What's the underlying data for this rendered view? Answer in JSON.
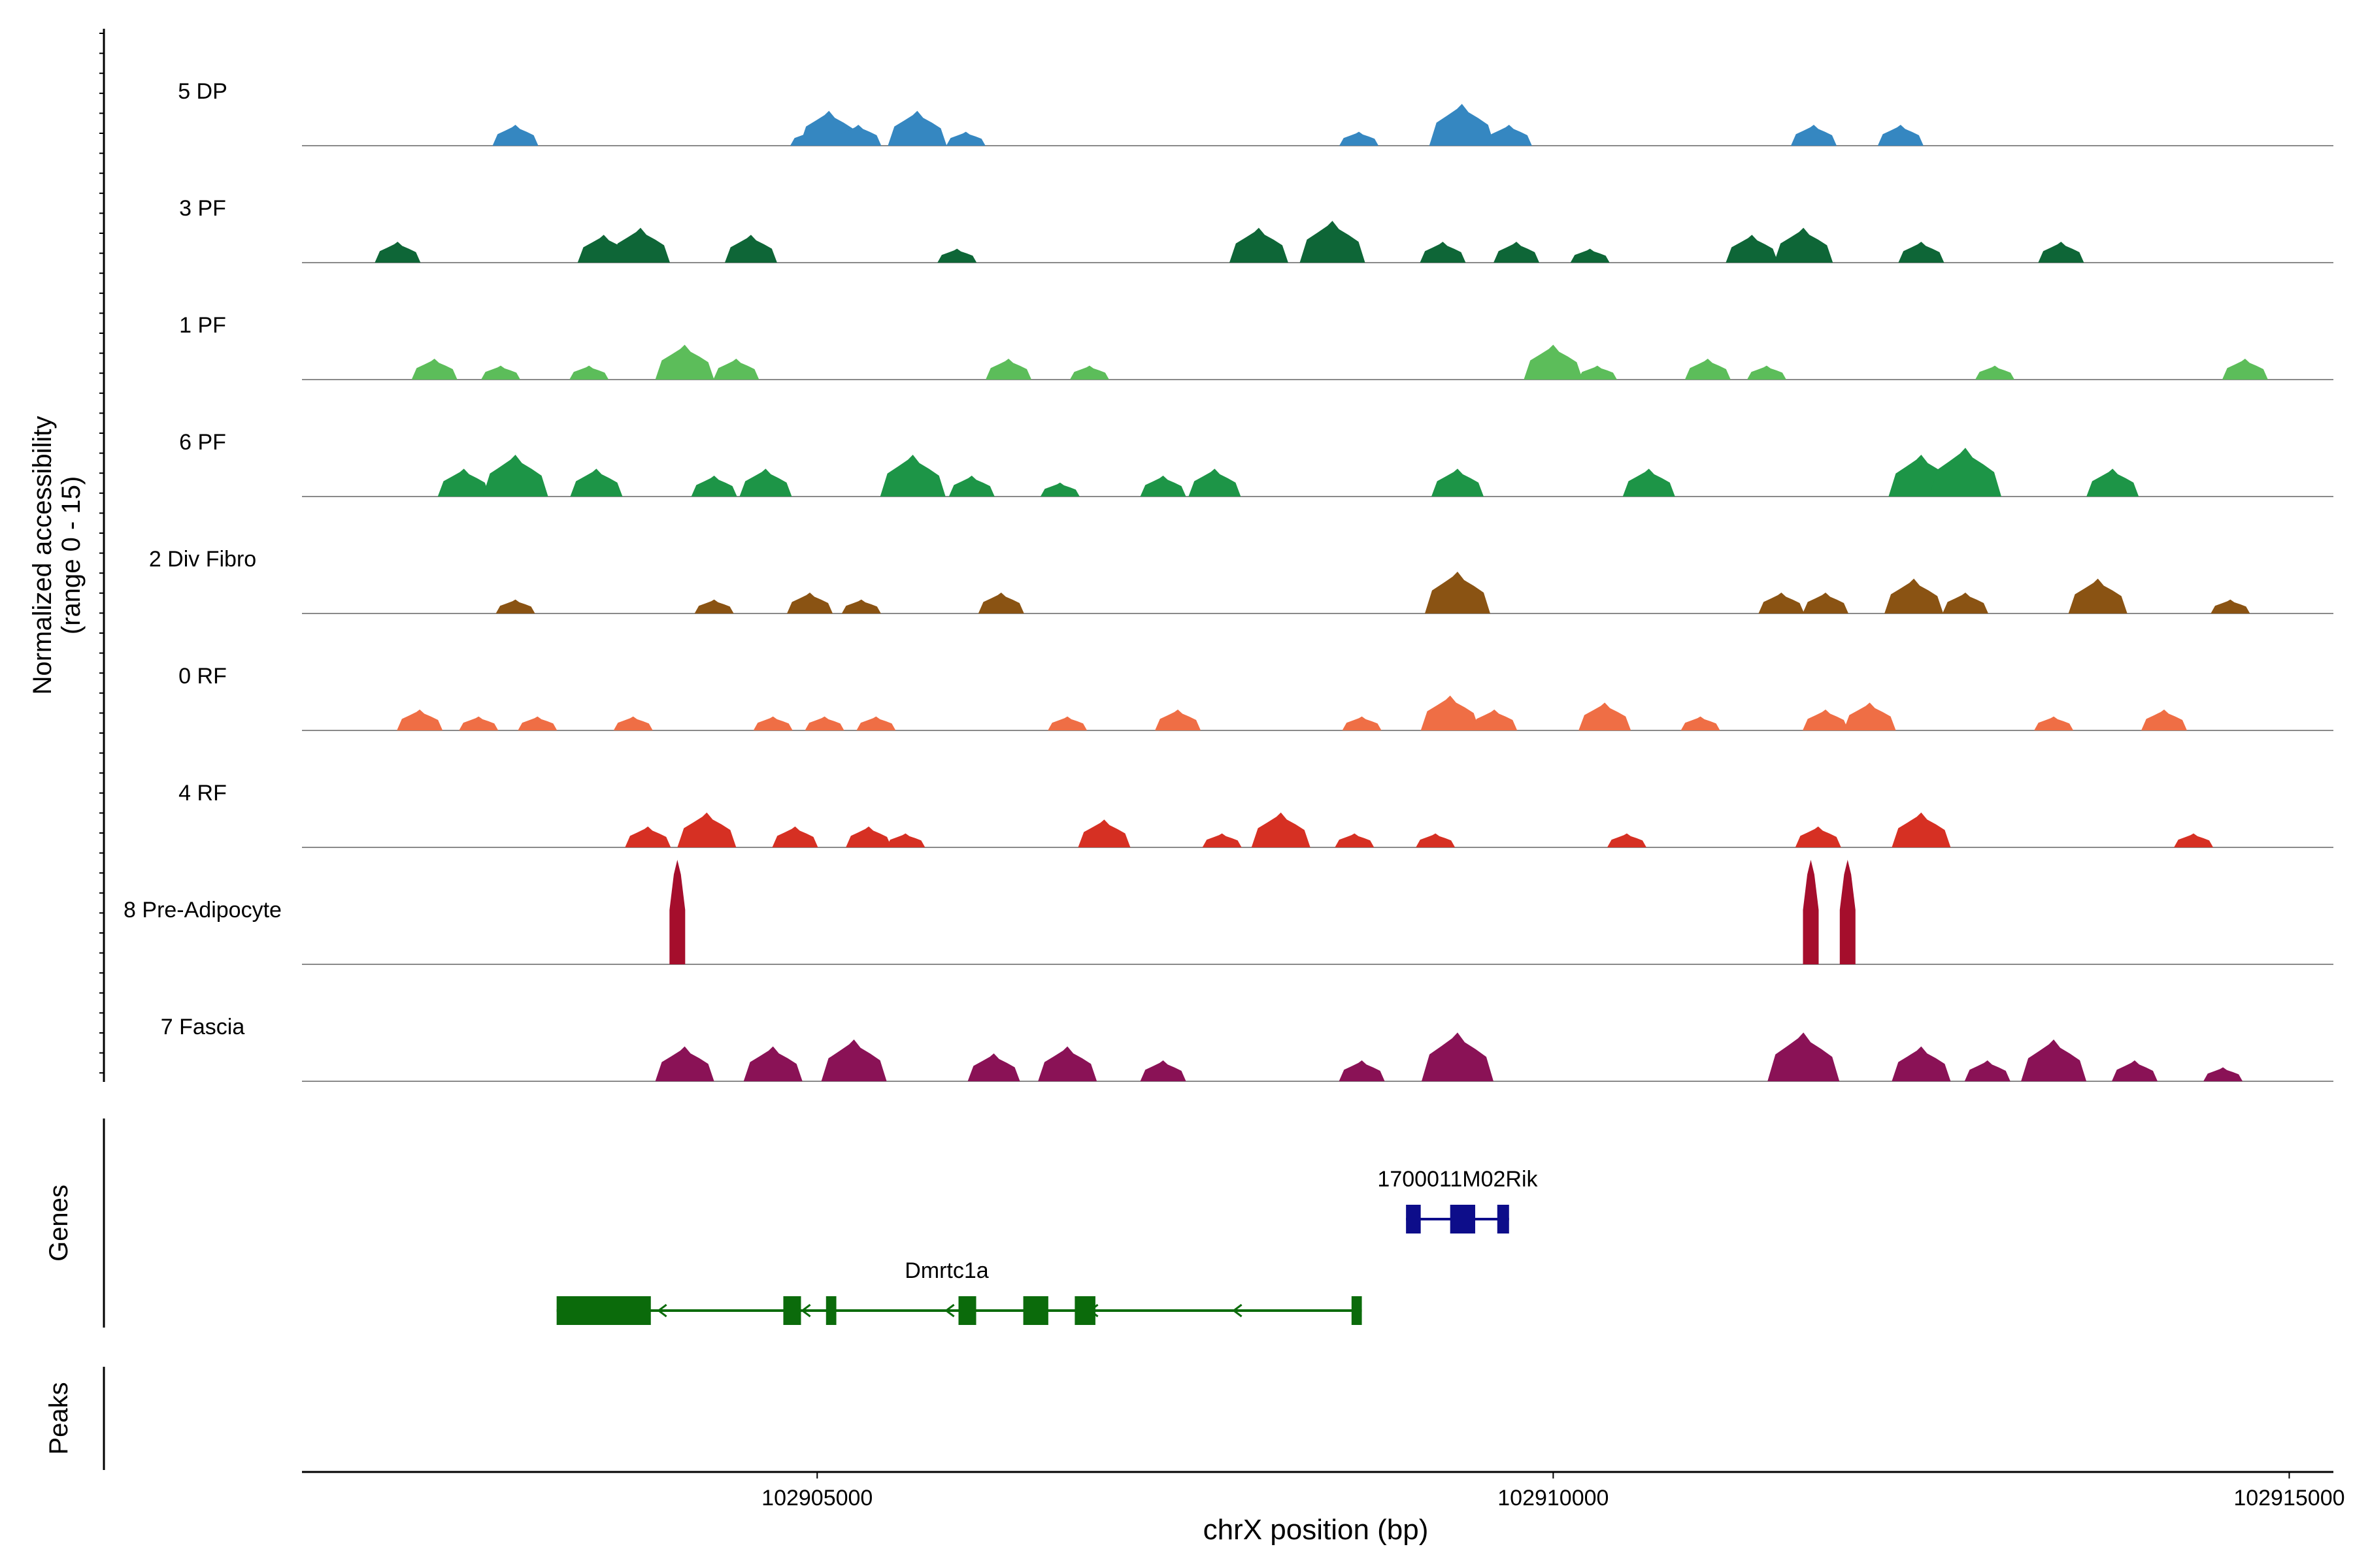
{
  "chart_data": {
    "type": "area",
    "title": "",
    "ylabel_line1": "Normalized accessibility",
    "ylabel_line2": "(range 0 - 15)",
    "xlabel": "chrX position (bp)",
    "xlim": [
      102901500,
      102915300
    ],
    "ylim": [
      0,
      15
    ],
    "x_ticks": [
      102905000,
      102910000,
      102915000
    ],
    "x_tick_labels": [
      "102905000",
      "102910000",
      "102915000"
    ],
    "grid": false,
    "tracks": [
      {
        "name": "5 DP",
        "color": "#3587c1",
        "peaks": [
          [
            102902950,
            3
          ],
          [
            102904950,
            2
          ],
          [
            102905080,
            5
          ],
          [
            102905280,
            3
          ],
          [
            102905680,
            5
          ],
          [
            102906010,
            2
          ],
          [
            102908680,
            2
          ],
          [
            102909380,
            6
          ],
          [
            102909700,
            3
          ],
          [
            102911770,
            3
          ],
          [
            102912360,
            3
          ]
        ]
      },
      {
        "name": "3 PF",
        "color": "#0e6637",
        "peaks": [
          [
            102902150,
            3
          ],
          [
            102903550,
            4
          ],
          [
            102903800,
            5
          ],
          [
            102904550,
            4
          ],
          [
            102905950,
            2
          ],
          [
            102908000,
            5
          ],
          [
            102908500,
            6
          ],
          [
            102909250,
            3
          ],
          [
            102909750,
            3
          ],
          [
            102910250,
            2
          ],
          [
            102911350,
            4
          ],
          [
            102911700,
            5
          ],
          [
            102912500,
            3
          ],
          [
            102913450,
            3
          ]
        ]
      },
      {
        "name": "1 PF",
        "color": "#5cbd5a",
        "peaks": [
          [
            102902400,
            3
          ],
          [
            102902850,
            2
          ],
          [
            102903450,
            2
          ],
          [
            102904100,
            5
          ],
          [
            102904450,
            3
          ],
          [
            102906300,
            3
          ],
          [
            102906850,
            2
          ],
          [
            102910000,
            5
          ],
          [
            102910300,
            2
          ],
          [
            102911050,
            3
          ],
          [
            102911450,
            2
          ],
          [
            102913000,
            2
          ],
          [
            102914700,
            3
          ]
        ]
      },
      {
        "name": "6 PF",
        "color": "#1d9547",
        "peaks": [
          [
            102902600,
            4
          ],
          [
            102902950,
            6
          ],
          [
            102903500,
            4
          ],
          [
            102904300,
            3
          ],
          [
            102904650,
            4
          ],
          [
            102905650,
            6
          ],
          [
            102906050,
            3
          ],
          [
            102906650,
            2
          ],
          [
            102907350,
            3
          ],
          [
            102907700,
            4
          ],
          [
            102909350,
            4
          ],
          [
            102910650,
            4
          ],
          [
            102912500,
            6
          ],
          [
            102912800,
            7
          ],
          [
            102913800,
            4
          ]
        ]
      },
      {
        "name": "2 Div Fibro",
        "color": "#8a5313",
        "peaks": [
          [
            102902950,
            2
          ],
          [
            102904300,
            2
          ],
          [
            102904950,
            3
          ],
          [
            102905300,
            2
          ],
          [
            102906250,
            3
          ],
          [
            102909350,
            6
          ],
          [
            102911550,
            3
          ],
          [
            102911850,
            3
          ],
          [
            102912450,
            5
          ],
          [
            102912800,
            3
          ],
          [
            102913700,
            5
          ],
          [
            102914600,
            2
          ]
        ]
      },
      {
        "name": "0 RF",
        "color": "#ef6e45",
        "peaks": [
          [
            102902300,
            3
          ],
          [
            102902700,
            2
          ],
          [
            102903100,
            2
          ],
          [
            102903750,
            2
          ],
          [
            102904700,
            2
          ],
          [
            102905050,
            2
          ],
          [
            102905400,
            2
          ],
          [
            102906700,
            2
          ],
          [
            102907450,
            3
          ],
          [
            102908700,
            2
          ],
          [
            102909300,
            5
          ],
          [
            102909600,
            3
          ],
          [
            102910350,
            4
          ],
          [
            102911000,
            2
          ],
          [
            102911850,
            3
          ],
          [
            102912150,
            4
          ],
          [
            102913400,
            2
          ],
          [
            102914150,
            3
          ]
        ]
      },
      {
        "name": "4 RF",
        "color": "#d63023",
        "peaks": [
          [
            102903850,
            3
          ],
          [
            102904250,
            5
          ],
          [
            102904850,
            3
          ],
          [
            102905350,
            3
          ],
          [
            102905600,
            2
          ],
          [
            102906950,
            4
          ],
          [
            102907750,
            2
          ],
          [
            102908150,
            5
          ],
          [
            102908650,
            2
          ],
          [
            102909200,
            2
          ],
          [
            102910500,
            2
          ],
          [
            102911800,
            3
          ],
          [
            102912500,
            5
          ],
          [
            102914350,
            2
          ]
        ]
      },
      {
        "name": "8 Pre-Adipocyte",
        "color": "#a50e2c",
        "peaks": [
          [
            102904050,
            15
          ],
          [
            102911750,
            15
          ],
          [
            102912000,
            15
          ]
        ]
      },
      {
        "name": "7 Fascia",
        "color": "#8a1256",
        "peaks": [
          [
            102904100,
            5
          ],
          [
            102904700,
            5
          ],
          [
            102905250,
            6
          ],
          [
            102906200,
            4
          ],
          [
            102906700,
            5
          ],
          [
            102907350,
            3
          ],
          [
            102908700,
            3
          ],
          [
            102909350,
            7
          ],
          [
            102911700,
            7
          ],
          [
            102912500,
            5
          ],
          [
            102912950,
            3
          ],
          [
            102913400,
            6
          ],
          [
            102913950,
            3
          ],
          [
            102914550,
            2
          ]
        ]
      }
    ],
    "genes_label": "Genes",
    "peaks_label": "Peaks",
    "genes": [
      {
        "name": "1700011M02Rik",
        "color": "#0d0d8a",
        "start": 102909000,
        "end": 102909700,
        "strand": "+",
        "row": 0,
        "exons": [
          [
            102909000,
            102909100
          ],
          [
            102909300,
            102909470
          ],
          [
            102909620,
            102909700
          ]
        ]
      },
      {
        "name": "Dmrtc1a",
        "color": "#0b6b0b",
        "start": 102903230,
        "end": 102908700,
        "strand": "-",
        "row": 1,
        "exons": [
          [
            102903230,
            102903870
          ],
          [
            102904770,
            102904890
          ],
          [
            102905060,
            102905130
          ],
          [
            102905960,
            102906080
          ],
          [
            102906400,
            102906570
          ],
          [
            102906750,
            102906890
          ],
          [
            102908630,
            102908700
          ]
        ]
      }
    ]
  }
}
